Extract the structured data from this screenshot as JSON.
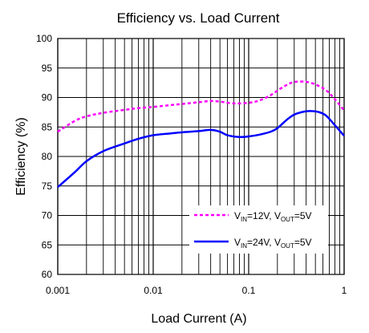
{
  "chart_data": {
    "type": "line",
    "title": "Efficiency vs. Load Current",
    "xlabel": "Load Current (A)",
    "ylabel": "Efficiency (%)",
    "x_scale": "log",
    "xlim": [
      0.001,
      1
    ],
    "ylim": [
      60,
      100
    ],
    "x_ticks": [
      {
        "value": 0.001,
        "label": "0.001"
      },
      {
        "value": 0.01,
        "label": "0.01"
      },
      {
        "value": 0.1,
        "label": "0.1"
      },
      {
        "value": 1,
        "label": "1"
      }
    ],
    "y_ticks": [
      {
        "value": 100,
        "label": "100"
      },
      {
        "value": 95,
        "label": "95"
      },
      {
        "value": 90,
        "label": "90"
      },
      {
        "value": 85,
        "label": "85"
      },
      {
        "value": 80,
        "label": "80"
      },
      {
        "value": 75,
        "label": "75"
      },
      {
        "value": 70,
        "label": "70"
      },
      {
        "value": 65,
        "label": "65"
      },
      {
        "value": 60,
        "label": "60"
      }
    ],
    "grid": true,
    "legend_position": "bottom-right",
    "series": [
      {
        "name": "VIN=12V, VOUT=5V",
        "legend": {
          "p1": "V",
          "s1": "IN",
          "p2": "=12V, V",
          "s2": "OUT",
          "p3": "=5V"
        },
        "color": "#ff00ff",
        "dash": "dashed",
        "points": [
          [
            0.001,
            84.2
          ],
          [
            0.0015,
            86.0
          ],
          [
            0.002,
            86.8
          ],
          [
            0.003,
            87.4
          ],
          [
            0.005,
            87.9
          ],
          [
            0.007,
            88.2
          ],
          [
            0.01,
            88.4
          ],
          [
            0.015,
            88.7
          ],
          [
            0.02,
            88.9
          ],
          [
            0.03,
            89.2
          ],
          [
            0.04,
            89.4
          ],
          [
            0.05,
            89.3
          ],
          [
            0.07,
            89.0
          ],
          [
            0.1,
            89.1
          ],
          [
            0.13,
            89.5
          ],
          [
            0.17,
            90.4
          ],
          [
            0.22,
            91.6
          ],
          [
            0.28,
            92.5
          ],
          [
            0.35,
            92.7
          ],
          [
            0.42,
            92.6
          ],
          [
            0.52,
            92.1
          ],
          [
            0.65,
            91.2
          ],
          [
            0.8,
            89.7
          ],
          [
            1.0,
            87.8
          ]
        ]
      },
      {
        "name": "VIN=24V, VOUT=5V",
        "legend": {
          "p1": "V",
          "s1": "IN",
          "p2": "=24V, V",
          "s2": "OUT",
          "p3": "=5V"
        },
        "color": "#0000ff",
        "dash": "solid",
        "points": [
          [
            0.001,
            74.8
          ],
          [
            0.0015,
            77.3
          ],
          [
            0.002,
            79.2
          ],
          [
            0.003,
            80.9
          ],
          [
            0.005,
            82.2
          ],
          [
            0.007,
            83.0
          ],
          [
            0.01,
            83.6
          ],
          [
            0.015,
            83.9
          ],
          [
            0.02,
            84.1
          ],
          [
            0.03,
            84.3
          ],
          [
            0.04,
            84.5
          ],
          [
            0.05,
            84.2
          ],
          [
            0.06,
            83.6
          ],
          [
            0.08,
            83.3
          ],
          [
            0.1,
            83.4
          ],
          [
            0.13,
            83.7
          ],
          [
            0.17,
            84.2
          ],
          [
            0.2,
            84.8
          ],
          [
            0.25,
            86.2
          ],
          [
            0.3,
            87.1
          ],
          [
            0.38,
            87.6
          ],
          [
            0.45,
            87.7
          ],
          [
            0.55,
            87.5
          ],
          [
            0.65,
            86.9
          ],
          [
            0.8,
            85.3
          ],
          [
            1.0,
            83.5
          ]
        ]
      }
    ]
  }
}
